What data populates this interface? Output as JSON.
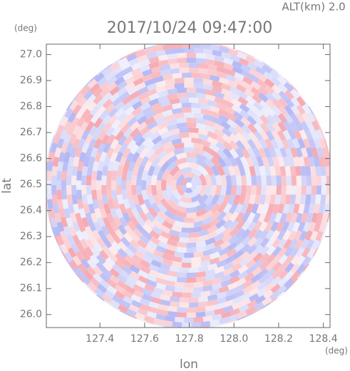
{
  "chart_data": {
    "type": "ppi",
    "title": "2017/10/24 09:47:00",
    "subtitle": "ALT(km) 2.0",
    "x_label": "lon",
    "y_label": "lat",
    "x_unit": "(deg)",
    "y_unit": "(deg)",
    "xlim": [
      127.16,
      128.43
    ],
    "ylim": [
      25.95,
      27.04
    ],
    "xticks": [
      127.4,
      127.6,
      127.8,
      {
        "value": 128.0,
        "label": "128.0"
      },
      128.2,
      128.4
    ],
    "yticks": [
      {
        "value": 26.0,
        "label": "26.0"
      },
      26.1,
      26.2,
      26.3,
      26.4,
      26.5,
      26.6,
      26.7,
      26.8,
      26.9,
      {
        "value": 27.0,
        "label": "27.0"
      }
    ],
    "colors": [
      "#f6a8b0",
      "#b3b7f4"
    ]
  }
}
